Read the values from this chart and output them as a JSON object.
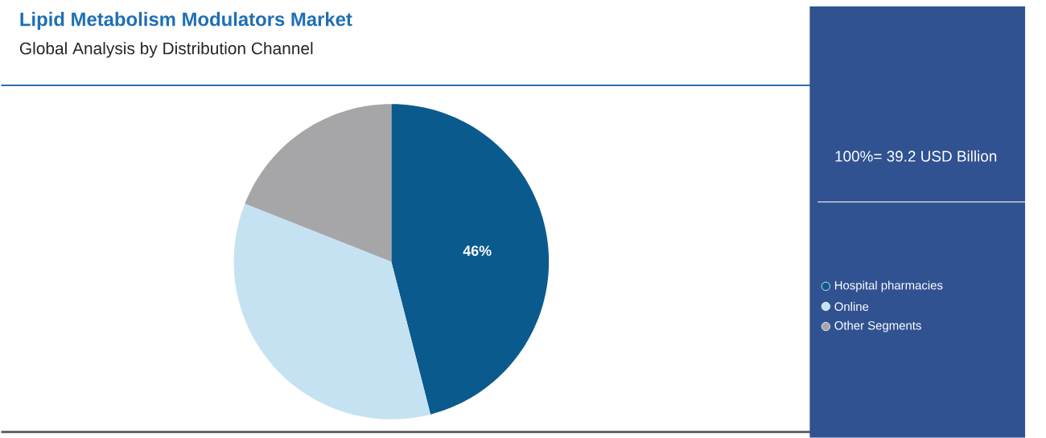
{
  "chart_data": {
    "type": "pie",
    "title": "Lipid Metabolism Modulators Market",
    "subtitle": "Global Analysis by Distribution Channel",
    "categories": [
      "Hospital pharmacies",
      "Online",
      "Other Segments"
    ],
    "values": [
      46,
      35,
      19
    ],
    "colors": [
      "#0b5a8e",
      "#c5e2f3",
      "#a6a6a8"
    ],
    "value_labels": [
      "46%",
      null,
      null
    ],
    "annotations": [
      "100%= 39.2 USD Billion"
    ],
    "legend": "right"
  }
}
